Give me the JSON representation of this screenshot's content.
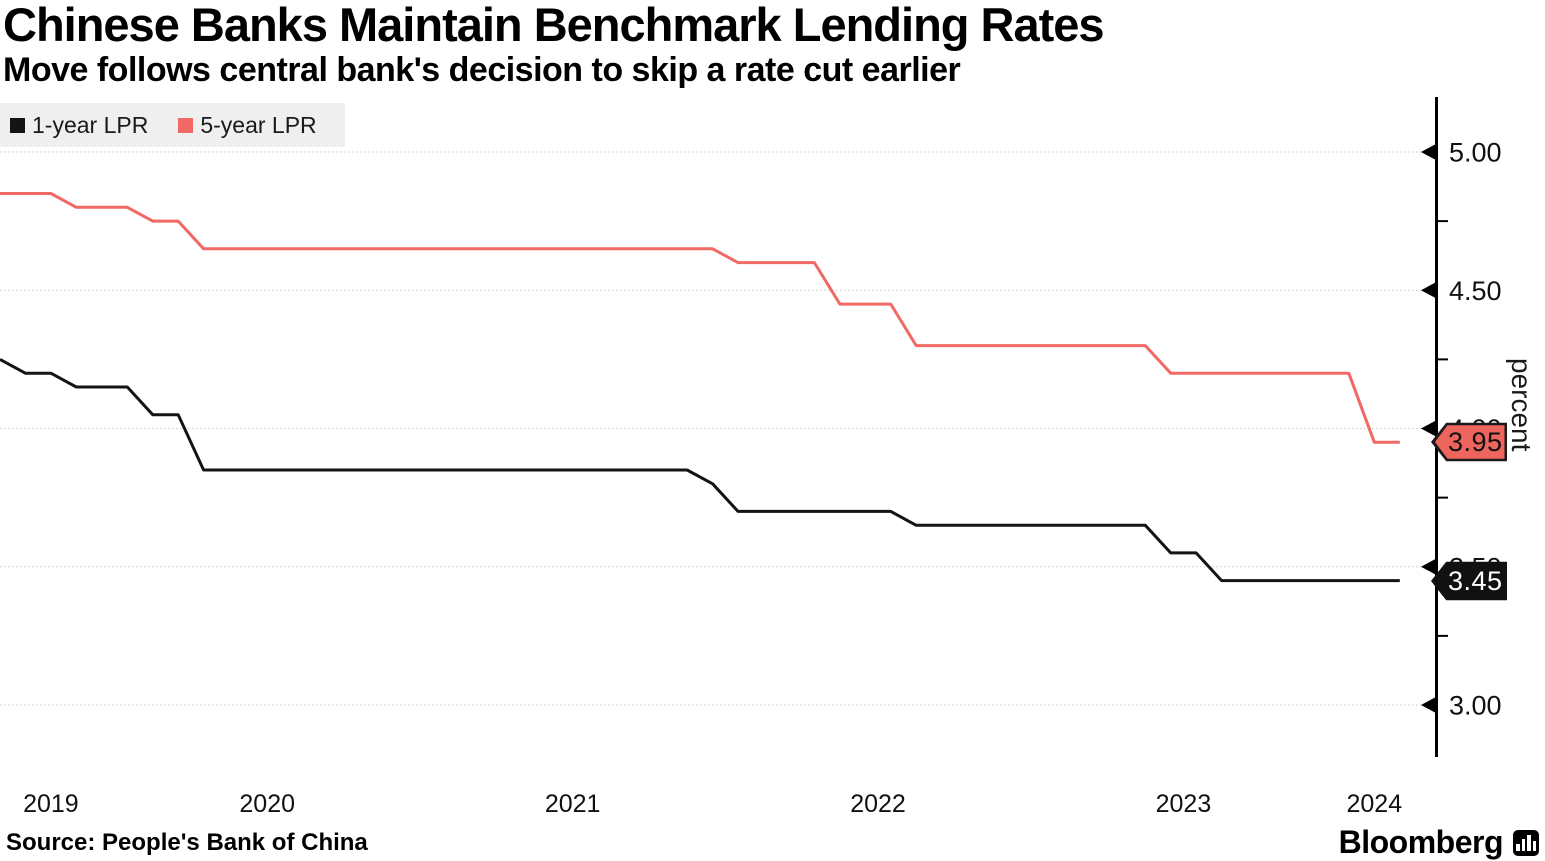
{
  "header": {
    "title": "Chinese Banks Maintain Benchmark Lending Rates",
    "subtitle": "Move follows central bank's decision to skip a rate cut earlier"
  },
  "legend": {
    "items": [
      {
        "label": "1-year LPR",
        "color": "#141414"
      },
      {
        "label": "5-year LPR",
        "color": "#f06964"
      }
    ]
  },
  "chart_data": {
    "type": "line",
    "title": "Chinese Banks Maintain Benchmark Lending Rates",
    "subtitle": "Move follows central bank's decision to skip a rate cut earlier",
    "ylabel": "percent",
    "ylim": [
      2.8,
      5.2
    ],
    "grid": "horizontal-dashed",
    "legend_position": "top-left",
    "x": [
      "2019-08",
      "2019-09",
      "2019-10",
      "2019-11",
      "2019-12",
      "2020-01",
      "2020-02",
      "2020-03",
      "2020-04",
      "2020-05",
      "2020-06",
      "2020-07",
      "2020-08",
      "2020-09",
      "2020-10",
      "2020-11",
      "2020-12",
      "2021-01",
      "2021-02",
      "2021-03",
      "2021-04",
      "2021-05",
      "2021-06",
      "2021-07",
      "2021-08",
      "2021-09",
      "2021-10",
      "2021-11",
      "2021-12",
      "2022-01",
      "2022-02",
      "2022-03",
      "2022-04",
      "2022-05",
      "2022-06",
      "2022-07",
      "2022-08",
      "2022-09",
      "2022-10",
      "2022-11",
      "2022-12",
      "2023-01",
      "2023-02",
      "2023-03",
      "2023-04",
      "2023-05",
      "2023-06",
      "2023-07",
      "2023-08",
      "2023-09",
      "2023-10",
      "2023-11",
      "2023-12",
      "2024-01",
      "2024-02",
      "2024-03"
    ],
    "series": [
      {
        "name": "1-year LPR",
        "color": "#141414",
        "values": [
          4.25,
          4.2,
          4.2,
          4.15,
          4.15,
          4.15,
          4.05,
          4.05,
          3.85,
          3.85,
          3.85,
          3.85,
          3.85,
          3.85,
          3.85,
          3.85,
          3.85,
          3.85,
          3.85,
          3.85,
          3.85,
          3.85,
          3.85,
          3.85,
          3.85,
          3.85,
          3.85,
          3.85,
          3.8,
          3.7,
          3.7,
          3.7,
          3.7,
          3.7,
          3.7,
          3.7,
          3.65,
          3.65,
          3.65,
          3.65,
          3.65,
          3.65,
          3.65,
          3.65,
          3.65,
          3.65,
          3.55,
          3.55,
          3.45,
          3.45,
          3.45,
          3.45,
          3.45,
          3.45,
          3.45,
          3.45
        ]
      },
      {
        "name": "5-year LPR",
        "color": "#f06964",
        "values": [
          4.85,
          4.85,
          4.85,
          4.8,
          4.8,
          4.8,
          4.75,
          4.75,
          4.65,
          4.65,
          4.65,
          4.65,
          4.65,
          4.65,
          4.65,
          4.65,
          4.65,
          4.65,
          4.65,
          4.65,
          4.65,
          4.65,
          4.65,
          4.65,
          4.65,
          4.65,
          4.65,
          4.65,
          4.65,
          4.6,
          4.6,
          4.6,
          4.6,
          4.45,
          4.45,
          4.45,
          4.3,
          4.3,
          4.3,
          4.3,
          4.3,
          4.3,
          4.3,
          4.3,
          4.3,
          4.3,
          4.2,
          4.2,
          4.2,
          4.2,
          4.2,
          4.2,
          4.2,
          4.2,
          3.95,
          3.95
        ]
      }
    ],
    "yticks_major": [
      {
        "value": 5.0,
        "label": "5.00"
      },
      {
        "value": 4.5,
        "label": "4.50"
      },
      {
        "value": 4.0,
        "label": "4.00"
      },
      {
        "value": 3.5,
        "label": "3.50"
      },
      {
        "value": 3.0,
        "label": "3.00"
      }
    ],
    "yticks_minor": [
      4.75,
      4.25,
      3.75,
      3.25
    ],
    "xticks": [
      "2019",
      "2020",
      "2021",
      "2022",
      "2023",
      "2024"
    ],
    "end_labels": [
      {
        "series": "1-year LPR",
        "value": "3.45",
        "fill": "#111111",
        "text_color": "#ffffff",
        "border": "#111111"
      },
      {
        "series": "5-year LPR",
        "value": "3.95",
        "fill": "#ee655d",
        "text_color": "#111111",
        "border": "#1a1a1a"
      }
    ],
    "grid_color": "#c9c9c9"
  },
  "footer": {
    "source": "Source: People's Bank of China",
    "brand": "Bloomberg"
  }
}
